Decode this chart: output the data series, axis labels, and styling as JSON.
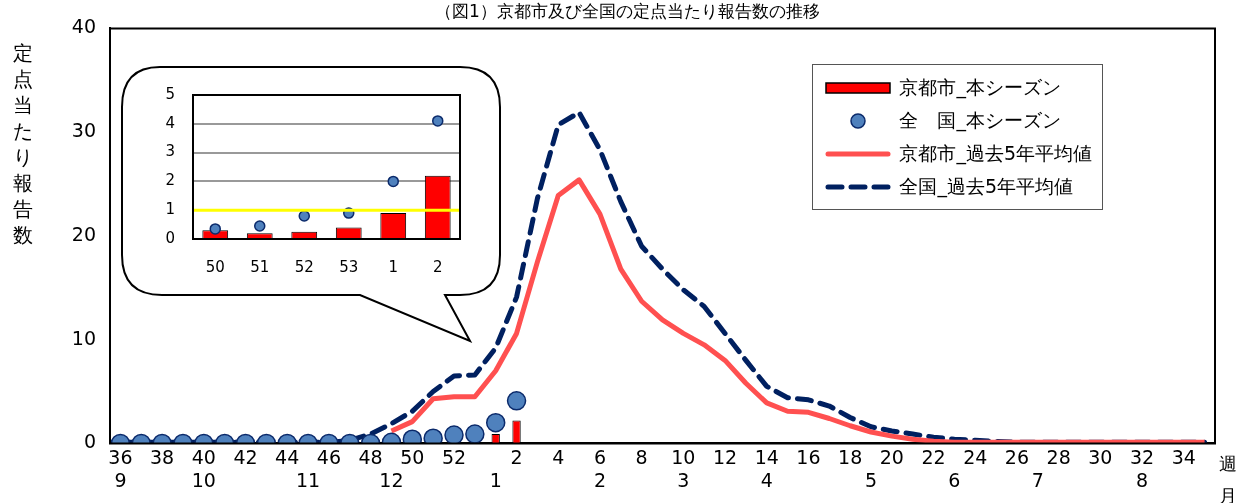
{
  "chart_data": [
    {
      "type": "bar",
      "title": "（図1）京都市及び全国の定点当たり報告数の推移",
      "ylabel": "定点当たり報告数",
      "xlabel": "週",
      "annotations": [
        "月"
      ],
      "categories": [
        "36\n9",
        null,
        "38",
        null,
        "40\n10",
        null,
        "42",
        null,
        "44",
        "\n11",
        "46",
        null,
        "48",
        "\n12",
        "50",
        null,
        "52",
        null,
        "\n1",
        "2",
        null,
        "4",
        null,
        "6\n2",
        null,
        "8",
        null,
        "10\n3",
        null,
        "12",
        null,
        "14\n4",
        null,
        "16",
        null,
        "18",
        "\n5",
        "20",
        null,
        "22",
        "\n6",
        "24",
        null,
        "26",
        "\n7",
        "28",
        null,
        "30",
        null,
        "32\n8",
        null,
        "34",
        null
      ],
      "series": [
        {
          "name": "京都市_本シーズン",
          "color": "#ff0000",
          "values": [
            0,
            0,
            0,
            0,
            0,
            0,
            0,
            0,
            0,
            0,
            0,
            0,
            0,
            0,
            null,
            null,
            null,
            null,
            0.9,
            2.2,
            null,
            null,
            null,
            null,
            null,
            null,
            null,
            null,
            null,
            null,
            null,
            null,
            null,
            null,
            null,
            null,
            null,
            null,
            null,
            null,
            null,
            null,
            null,
            null,
            null,
            null,
            null,
            null,
            null,
            null,
            null,
            null,
            null
          ]
        },
        {
          "name": "全　国_本シーズン",
          "type": "scatter",
          "marker": "circle",
          "color": "#4f81bd",
          "values": [
            0,
            0,
            0,
            0,
            0,
            0,
            0,
            0,
            0,
            0,
            0,
            0,
            0,
            0.1,
            0.4,
            0.5,
            0.8,
            0.9,
            2.0,
            4.1,
            null,
            null,
            null,
            null,
            null,
            null,
            null,
            null,
            null,
            null,
            null,
            null,
            null,
            null,
            null,
            null,
            null,
            null,
            null,
            null,
            null,
            null,
            null,
            null,
            null,
            null,
            null,
            null,
            null,
            null,
            null,
            null,
            null
          ]
        },
        {
          "name": "京都市_過去5年平均値",
          "type": "line",
          "line_style": "solid",
          "color": "#ff5050",
          "values": [
            null,
            null,
            null,
            null,
            null,
            null,
            null,
            null,
            null,
            null,
            null,
            null,
            null,
            1.2,
            2.1,
            4.3,
            4.5,
            4.5,
            7.0,
            10.6,
            17.5,
            23.9,
            25.4,
            22.1,
            16.8,
            13.7,
            11.9,
            10.6,
            9.5,
            8.0,
            5.8,
            3.9,
            3.1,
            3.0,
            2.4,
            1.7,
            1.1,
            0.7,
            0.4,
            0.2,
            0.1,
            0.1,
            0.1,
            0.1,
            0.1,
            0.1,
            0.1,
            0.1,
            0.1,
            0.1,
            0.1,
            0.1,
            0.1
          ]
        },
        {
          "name": "全国_過去5年平均値",
          "type": "line",
          "line_style": "dashed",
          "color": "#002060",
          "values": [
            0.1,
            0.1,
            0.1,
            0.1,
            0.1,
            0.1,
            0.1,
            0.1,
            0.1,
            0.1,
            0.1,
            0.3,
            0.9,
            1.9,
            3.1,
            5.0,
            6.5,
            6.6,
            9.2,
            14.1,
            23.6,
            30.7,
            31.9,
            28.3,
            23.3,
            19.0,
            16.8,
            14.8,
            13.2,
            10.6,
            8.0,
            5.5,
            4.4,
            4.2,
            3.6,
            2.5,
            1.6,
            1.2,
            0.9,
            0.6,
            0.4,
            0.3,
            0.2,
            0.1,
            0.1,
            0.1,
            0.1,
            0.1,
            0.1,
            0.1,
            0.1,
            0.1,
            0.1
          ]
        }
      ],
      "ylim": [
        0,
        40
      ],
      "yticks": [
        0,
        10,
        20,
        30,
        40
      ],
      "grid": false,
      "legend": "top right"
    },
    {
      "type": "bar",
      "categories": [
        "50",
        "51",
        "52",
        "53",
        "1",
        "2"
      ],
      "series": [
        {
          "color": "#ff0000",
          "values": [
            0.3,
            0.2,
            0.25,
            0.4,
            0.9,
            2.2
          ]
        },
        {
          "type": "scatter",
          "marker": "circle",
          "color": "#4f81bd",
          "values": [
            0.35,
            0.45,
            0.8,
            0.9,
            2.0,
            4.1
          ]
        }
      ],
      "ylim": [
        0,
        5
      ],
      "yticks": [
        0,
        1,
        2,
        3,
        4,
        5
      ],
      "grid": "y",
      "ref_lines": [
        {
          "axis": "y",
          "value": 1,
          "color": "#ffff00"
        }
      ]
    }
  ]
}
